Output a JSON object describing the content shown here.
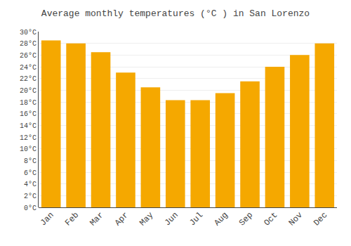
{
  "chart_data": {
    "type": "bar",
    "title": "Average monthly temperatures (°C ) in San Lorenzo",
    "categories": [
      "Jan",
      "Feb",
      "Mar",
      "Apr",
      "May",
      "Jun",
      "Jul",
      "Aug",
      "Sep",
      "Oct",
      "Nov",
      "Dec"
    ],
    "values": [
      28.5,
      28.0,
      26.5,
      23.0,
      20.5,
      18.3,
      18.3,
      19.5,
      21.5,
      24.0,
      26.0,
      28.0
    ],
    "color": "#F5A800",
    "ylim": [
      0,
      30
    ],
    "yticks": [
      {
        "value": 0,
        "label": "0°C"
      },
      {
        "value": 2,
        "label": "2°C"
      },
      {
        "value": 4,
        "label": "4°C"
      },
      {
        "value": 6,
        "label": "6°C"
      },
      {
        "value": 8,
        "label": "8°C"
      },
      {
        "value": 10,
        "label": "10°C"
      },
      {
        "value": 12,
        "label": "12°C"
      },
      {
        "value": 14,
        "label": "14°C"
      },
      {
        "value": 16,
        "label": "16°C"
      },
      {
        "value": 18,
        "label": "18°C"
      },
      {
        "value": 20,
        "label": "20°C"
      },
      {
        "value": 22,
        "label": "22°C"
      },
      {
        "value": 24,
        "label": "24°C"
      },
      {
        "value": 26,
        "label": "26°C"
      },
      {
        "value": 28,
        "label": "28°C"
      },
      {
        "value": 30,
        "label": "30°C"
      }
    ],
    "grid": true
  }
}
